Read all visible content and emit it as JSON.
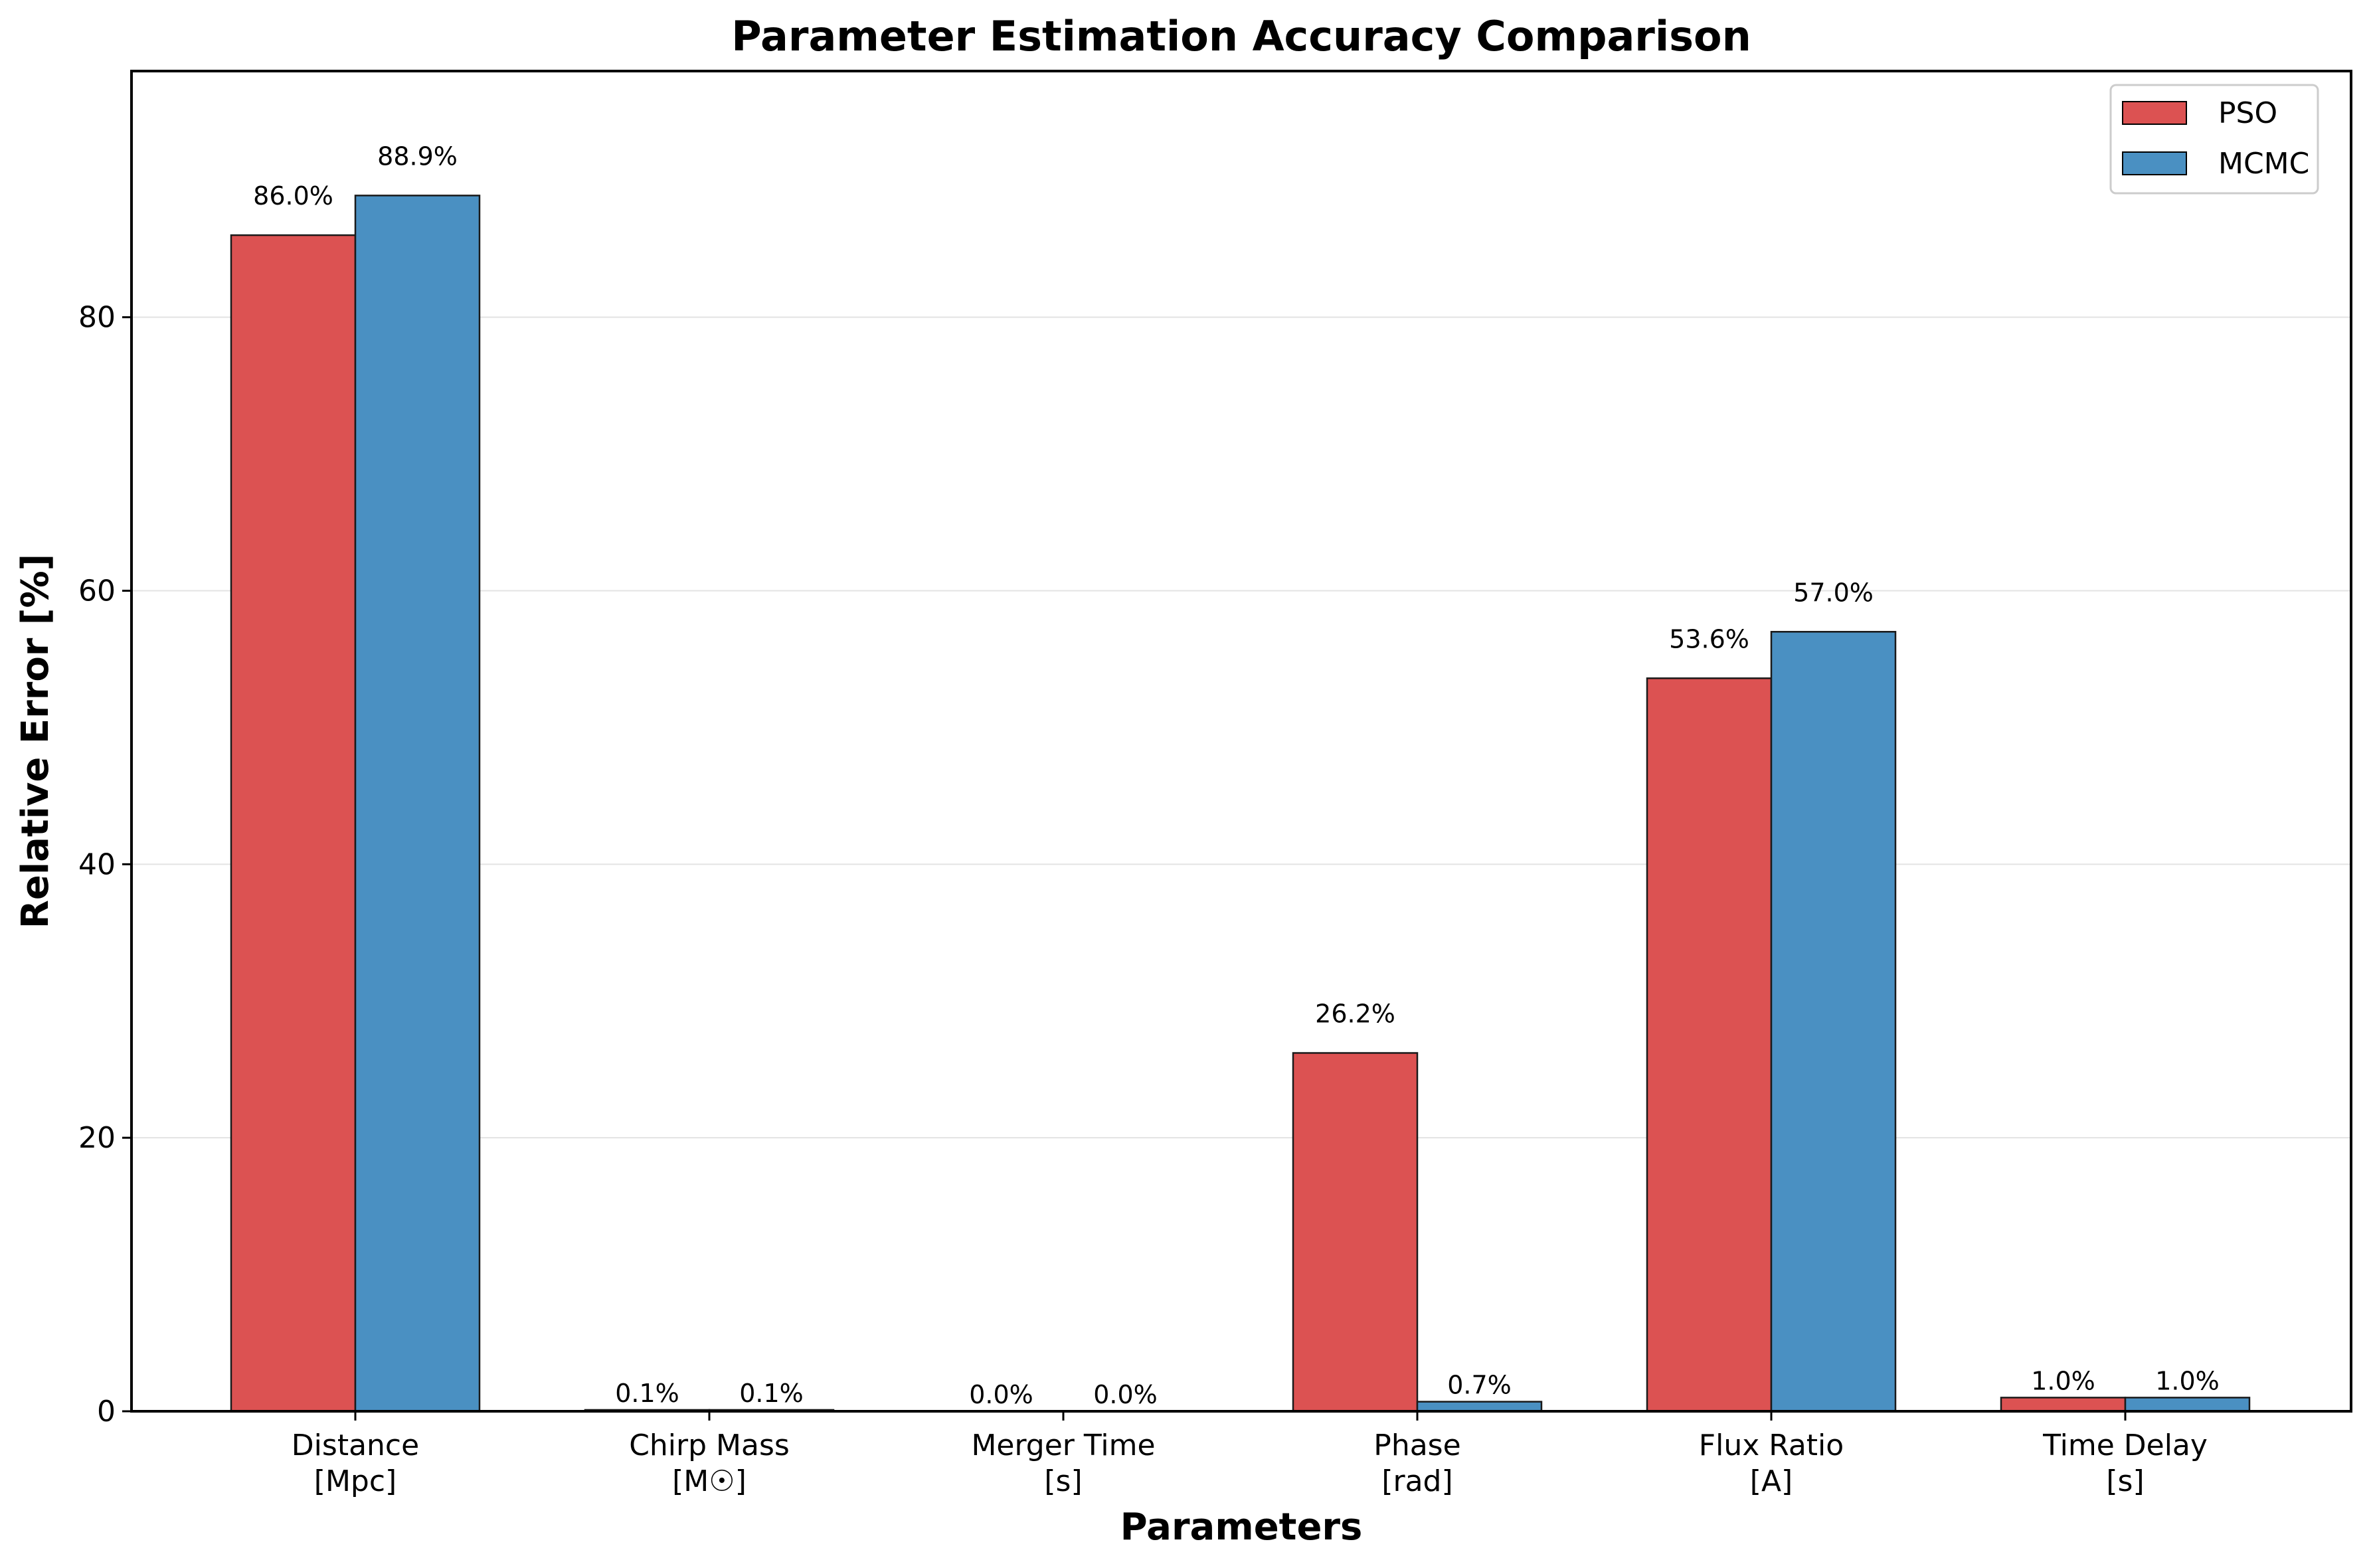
{
  "chart_data": {
    "type": "bar",
    "title": "Parameter Estimation Accuracy Comparison",
    "xlabel": "Parameters",
    "ylabel": "Relative Error [%]",
    "categories": [
      [
        "Distance",
        "[Mpc]"
      ],
      [
        "Chirp Mass",
        "[M☉]"
      ],
      [
        "Merger Time",
        "[s]"
      ],
      [
        "Phase",
        "[rad]"
      ],
      [
        "Flux Ratio",
        "[A]"
      ],
      [
        "Time Delay",
        "[s]"
      ]
    ],
    "series": [
      {
        "name": "PSO",
        "color": "#dc5252",
        "values": [
          86.0,
          0.1,
          0.0,
          26.2,
          53.6,
          1.0
        ],
        "labels": [
          "86.0%",
          "0.1%",
          "0.0%",
          "26.2%",
          "53.6%",
          "1.0%"
        ]
      },
      {
        "name": "MCMC",
        "color": "#4a90c2",
        "values": [
          88.9,
          0.1,
          0.0,
          0.7,
          57.0,
          1.0
        ],
        "labels": [
          "88.9%",
          "0.1%",
          "0.0%",
          "0.7%",
          "57.0%",
          "1.0%"
        ]
      }
    ],
    "ylim": [
      0,
      98
    ],
    "yticks": [
      0,
      20,
      40,
      60,
      80
    ],
    "grid": "y",
    "legend": "top-right"
  }
}
